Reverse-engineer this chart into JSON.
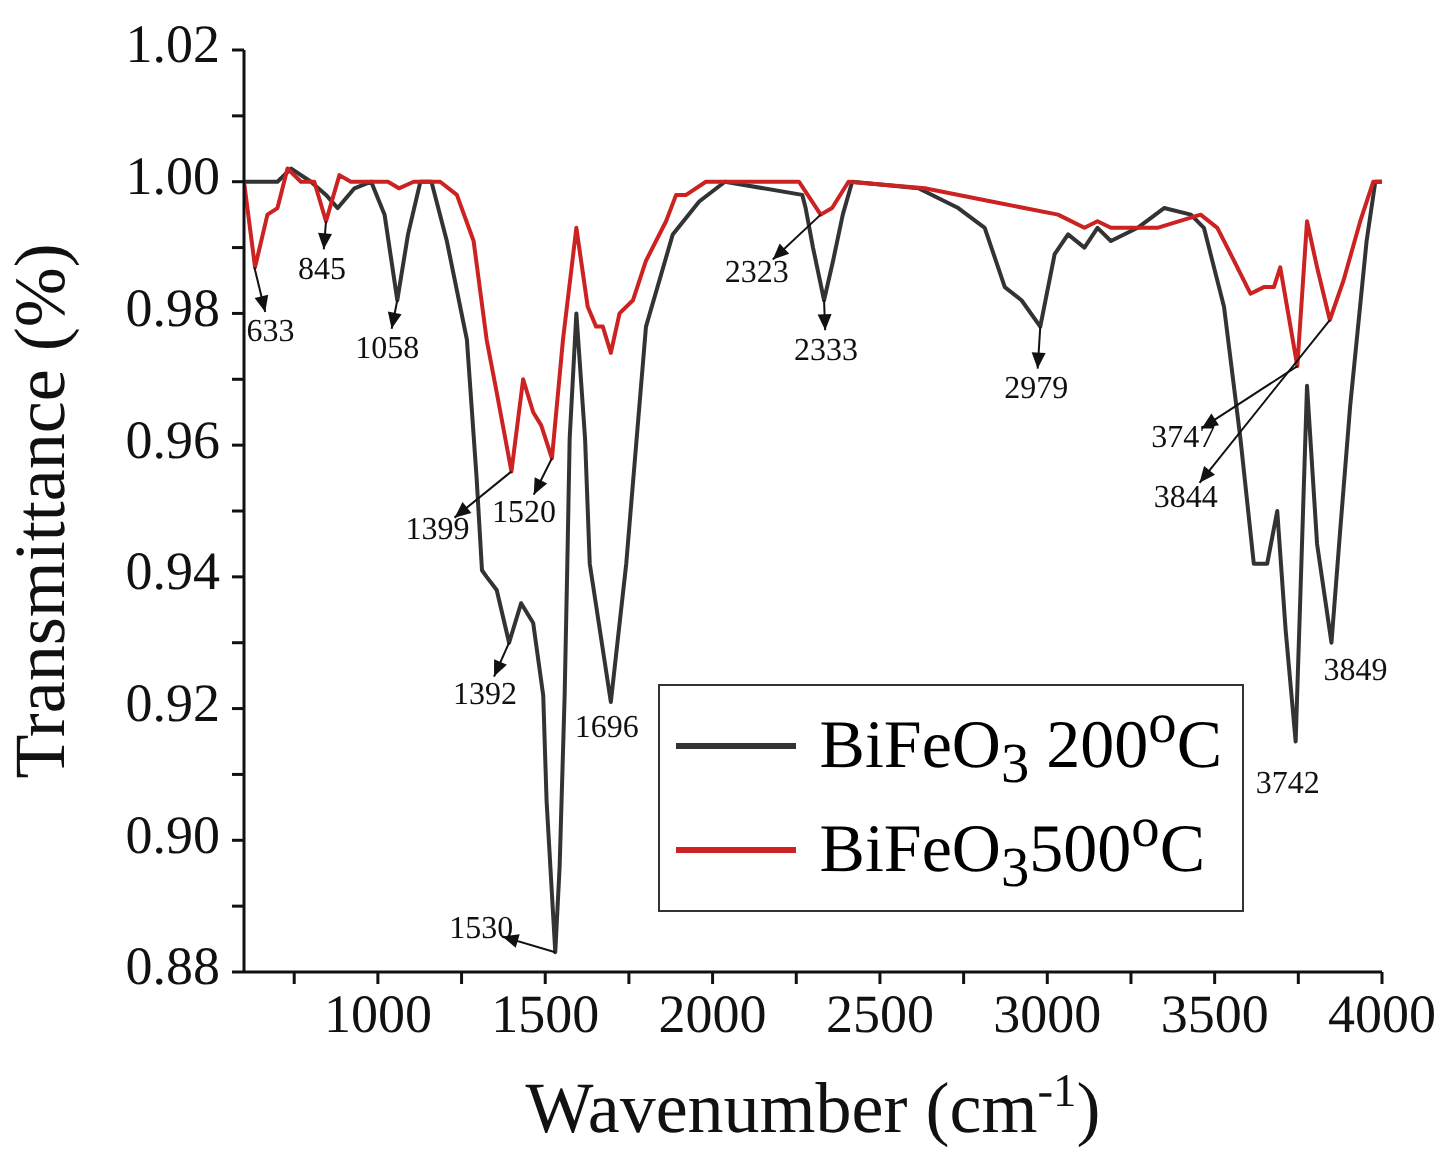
{
  "chart_data": {
    "type": "line",
    "xlabel": "Wavenumber (cm$^{-1}$)",
    "ylabel": "Transmittance (%)",
    "xlim": [
      600,
      4000
    ],
    "ylim": [
      0.88,
      1.02
    ],
    "xticks": [
      {
        "value": 750,
        "label": null
      },
      1000,
      {
        "value": 1250,
        "label": null
      },
      1500,
      {
        "value": 1750,
        "label": null
      },
      2000,
      {
        "value": 2250,
        "label": null
      },
      2500,
      {
        "value": 2750,
        "label": null
      },
      3000,
      {
        "value": 3250,
        "label": null
      },
      3500,
      {
        "value": 3750,
        "label": null
      },
      4000
    ],
    "yticks": [
      0.88,
      {
        "value": 0.89,
        "label": null
      },
      {
        "value": 0.9,
        "label": "0.90"
      },
      {
        "value": 0.91,
        "label": null
      },
      0.92,
      {
        "value": 0.93,
        "label": null
      },
      0.94,
      {
        "value": 0.95,
        "label": null
      },
      0.96,
      {
        "value": 0.97,
        "label": null
      },
      0.98,
      {
        "value": 0.99,
        "label": null
      },
      {
        "value": 1,
        "label": "1.00"
      },
      {
        "value": 1.01,
        "label": null
      },
      1.02
    ],
    "legend": "bottom right",
    "series": [
      {
        "name": "BiFeO$_{3}$ 200$^{o}$C",
        "color": "#333333",
        "x": [
          600,
          700,
          741,
          800,
          845,
          880,
          930,
          980,
          1020,
          1058,
          1090,
          1127,
          1160,
          1206,
          1266,
          1295,
          1311,
          1325,
          1355,
          1392,
          1428,
          1464,
          1494,
          1504,
          1530,
          1543,
          1558,
          1566,
          1573,
          1593,
          1619,
          1633,
          1696,
          1742,
          1801,
          1881,
          1960,
          2037,
          2268,
          2278,
          2300,
          2333,
          2360,
          2389,
          2417,
          2615,
          2734,
          2813,
          2873,
          2923,
          2979,
          3022,
          3062,
          3111,
          3150,
          3190,
          3270,
          3349,
          3429,
          3468,
          3528,
          3577,
          3617,
          3657,
          3687,
          3712,
          3742,
          3756,
          3776,
          3806,
          3849,
          3875,
          3905,
          3954,
          3980,
          4000
        ],
        "values": [
          1.0,
          1.0,
          1.002,
          1.0,
          0.998,
          0.996,
          0.999,
          1.0,
          0.995,
          0.982,
          0.992,
          1.0,
          1.0,
          0.991,
          0.976,
          0.955,
          0.941,
          0.94,
          0.938,
          0.93,
          0.936,
          0.933,
          0.922,
          0.906,
          0.883,
          0.896,
          0.922,
          0.942,
          0.961,
          0.98,
          0.961,
          0.942,
          0.921,
          0.942,
          0.978,
          0.992,
          0.997,
          1.0,
          0.998,
          0.996,
          0.99,
          0.982,
          0.988,
          0.995,
          1.0,
          0.999,
          0.996,
          0.993,
          0.984,
          0.982,
          0.978,
          0.989,
          0.992,
          0.99,
          0.993,
          0.991,
          0.993,
          0.996,
          0.995,
          0.993,
          0.981,
          0.961,
          0.942,
          0.942,
          0.95,
          0.932,
          0.915,
          0.937,
          0.969,
          0.945,
          0.93,
          0.947,
          0.966,
          0.991,
          1.0,
          1.0
        ]
      },
      {
        "name": "BiFeO$_{3}$500$^{o}$C",
        "color": "#cc2222",
        "x": [
          600,
          633,
          670,
          700,
          730,
          770,
          810,
          845,
          885,
          919,
          1030,
          1063,
          1107,
          1186,
          1236,
          1286,
          1325,
          1355,
          1399,
          1434,
          1464,
          1488,
          1520,
          1553,
          1593,
          1627,
          1652,
          1672,
          1696,
          1722,
          1762,
          1801,
          1861,
          1891,
          1921,
          1980,
          2258,
          2323,
          2357,
          2406,
          2634,
          2833,
          3032,
          3111,
          3150,
          3190,
          3250,
          3329,
          3458,
          3508,
          3548,
          3607,
          3647,
          3677,
          3696,
          3747,
          3776,
          3806,
          3844,
          3885,
          3935,
          3974,
          4000
        ],
        "values": [
          1.0,
          0.987,
          0.995,
          0.996,
          1.002,
          1.0,
          1.0,
          0.994,
          1.001,
          1.0,
          1.0,
          0.999,
          1.0,
          1.0,
          0.998,
          0.991,
          0.976,
          0.968,
          0.956,
          0.97,
          0.965,
          0.963,
          0.958,
          0.976,
          0.993,
          0.981,
          0.978,
          0.978,
          0.974,
          0.98,
          0.982,
          0.988,
          0.994,
          0.998,
          0.998,
          1.0,
          1.0,
          0.995,
          0.996,
          1.0,
          0.999,
          0.997,
          0.995,
          0.993,
          0.994,
          0.993,
          0.993,
          0.993,
          0.995,
          0.993,
          0.989,
          0.983,
          0.984,
          0.984,
          0.987,
          0.972,
          0.994,
          0.987,
          0.979,
          0.985,
          0.994,
          1.0,
          1.0
        ]
      }
    ],
    "annotations": [
      {
        "text": "633",
        "x": 631,
        "y": 0.987
      },
      {
        "text": "845",
        "x": 845,
        "y": 0.994
      },
      {
        "text": "1058",
        "x": 1058,
        "y": 0.982
      },
      {
        "text": "1399",
        "x": 1399,
        "y": 0.956
      },
      {
        "text": "1520",
        "x": 1520,
        "y": 0.958
      },
      {
        "text": "2323",
        "x": 2323,
        "y": 0.995
      },
      {
        "text": "2333",
        "x": 2333,
        "y": 0.982
      },
      {
        "text": "2979",
        "x": 2979,
        "y": 0.978
      },
      {
        "text": "3747",
        "x": 3747,
        "y": 0.972
      },
      {
        "text": "3844",
        "x": 3844,
        "y": 0.979
      },
      {
        "text": "1392",
        "x": 1392,
        "y": 0.93
      },
      {
        "text": "1696",
        "x": 1696,
        "y": 0.921
      },
      {
        "text": "1530",
        "x": 1530,
        "y": 0.883
      },
      {
        "text": "3742",
        "x": 3742,
        "y": 0.915
      },
      {
        "text": "3849",
        "x": 3849,
        "y": 0.93
      }
    ]
  }
}
